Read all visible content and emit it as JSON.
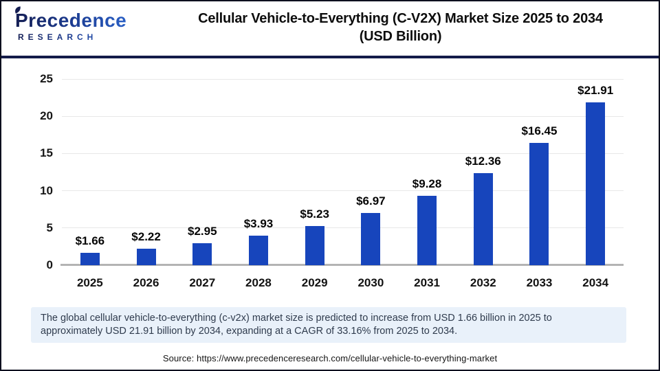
{
  "header": {
    "logo": {
      "wordmark": "Precedence",
      "subtext": "RESEARCH"
    },
    "title_line1": "Cellular Vehicle-to-Everything (C-V2X) Market Size 2025 to 2034",
    "title_line2": "(USD Billion)"
  },
  "chart_data": {
    "type": "bar",
    "title": "Cellular Vehicle-to-Everything (C-V2X) Market Size 2025 to 2034 (USD Billion)",
    "categories": [
      "2025",
      "2026",
      "2027",
      "2028",
      "2029",
      "2030",
      "2031",
      "2032",
      "2033",
      "2034"
    ],
    "values": [
      1.66,
      2.22,
      2.95,
      3.93,
      5.23,
      6.97,
      9.28,
      12.36,
      16.45,
      21.91
    ],
    "value_labels": [
      "$1.66",
      "$2.22",
      "$2.95",
      "$3.93",
      "$5.23",
      "$6.97",
      "$9.28",
      "$12.36",
      "$16.45",
      "$21.91"
    ],
    "xlabel": "",
    "ylabel": "",
    "ylim": [
      0,
      25
    ],
    "yticks": [
      0,
      5,
      10,
      15,
      20,
      25
    ],
    "grid": true,
    "legend": false,
    "bar_color": "#1745BC"
  },
  "note": {
    "text": "The global cellular vehicle-to-everything (c-v2x) market size is predicted to increase from USD 1.66 billion in 2025 to approximately USD 21.91 billion by 2034, expanding at a CAGR of 33.16% from 2025 to 2034."
  },
  "source": {
    "text": "Source: https://www.precedenceresearch.com/cellular-vehicle-to-everything-market"
  },
  "colors": {
    "bar_blue": "#1745BC",
    "divider_navy": "#141B49",
    "note_background": "#E9F1FA",
    "gridline_gray": "#E8E8E8",
    "axis_gray": "#B4B4B4"
  }
}
